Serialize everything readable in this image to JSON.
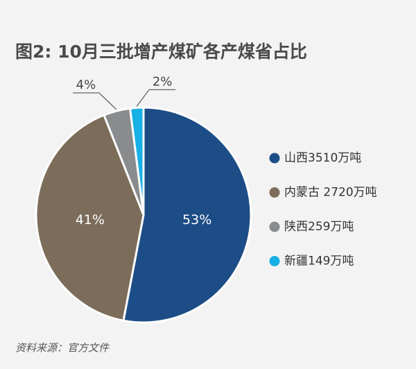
{
  "chart_data": {
    "type": "pie",
    "title": "图2: 10月三批增产煤矿各产煤省占比",
    "categories": [
      "山西3510万吨",
      "内蒙古 2720万吨",
      "陕西259万吨",
      "新疆149万吨"
    ],
    "values": [
      53,
      41,
      4,
      2
    ],
    "value_labels": [
      "53%",
      "41%",
      "4%",
      "2%"
    ],
    "colors": [
      "#1d4d86",
      "#7c6d5b",
      "#898b8d",
      "#19b0e6"
    ],
    "legend": "right",
    "source": "资料来源：官方文件"
  }
}
